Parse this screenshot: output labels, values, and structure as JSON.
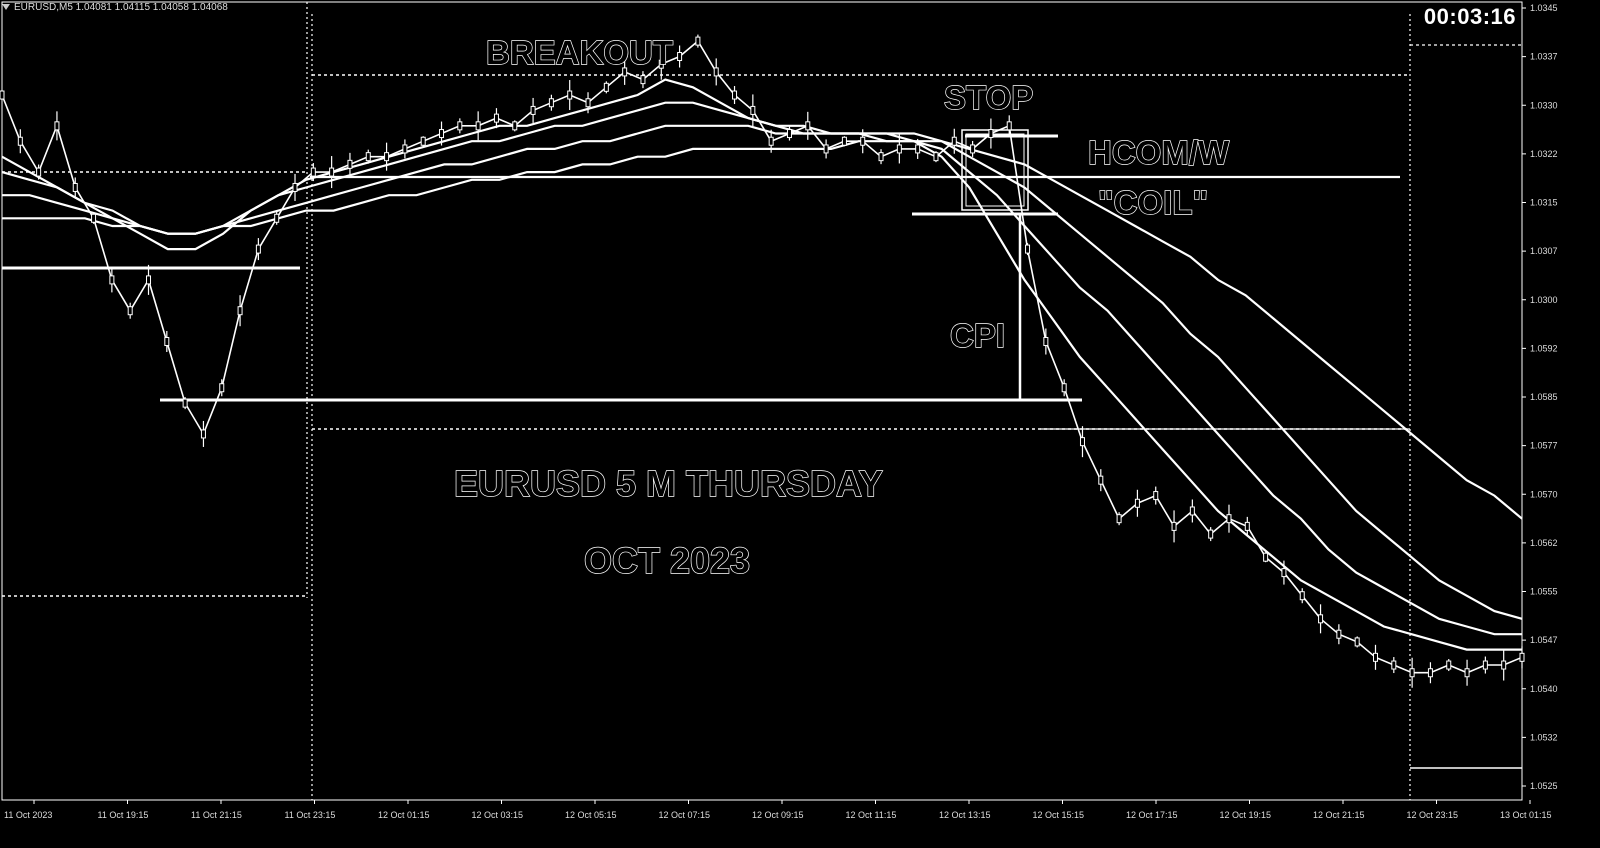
{
  "header": {
    "symbol_line": "EURUSD,M5  1.04081 1.04115 1.04058 1.04068"
  },
  "timer": {
    "value": "00:03:16"
  },
  "annotations": {
    "breakout": "BREAKOUT",
    "stop": "STOP",
    "hcom": "HCOM/W",
    "coil": "\"COIL\"",
    "cpi": "CPI",
    "title_line1": "EURUSD 5 M THURSDAY",
    "title_line2": "OCT 2023"
  },
  "colors": {
    "background": "#000000",
    "foreground": "#ffffff"
  },
  "chart_data": {
    "type": "line",
    "price_axis_labels": [
      "1.0345",
      "1.0337",
      "1.0330",
      "1.0322",
      "1.0315",
      "1.0307",
      "1.0300",
      "1.0592",
      "1.0585",
      "1.0577",
      "1.0570",
      "1.0562",
      "1.0555",
      "1.0547",
      "1.0540",
      "1.0532",
      "1.0525"
    ],
    "time_axis_labels": [
      "11 Oct 2023",
      "11 Oct 19:15",
      "11 Oct 21:15",
      "11 Oct 23:15",
      "12 Oct 01:15",
      "12 Oct 03:15",
      "12 Oct 05:15",
      "12 Oct 07:15",
      "12 Oct 09:15",
      "12 Oct 11:15",
      "12 Oct 13:15",
      "12 Oct 15:15",
      "12 Oct 17:15",
      "12 Oct 19:15",
      "12 Oct 21:15",
      "12 Oct 23:15",
      "13 Oct 01:15"
    ],
    "price": [
      0.9,
      0.84,
      0.8,
      0.86,
      0.78,
      0.74,
      0.66,
      0.62,
      0.66,
      0.58,
      0.5,
      0.46,
      0.52,
      0.62,
      0.7,
      0.74,
      0.78,
      0.8,
      0.8,
      0.81,
      0.82,
      0.82,
      0.83,
      0.84,
      0.85,
      0.86,
      0.86,
      0.87,
      0.86,
      0.88,
      0.89,
      0.9,
      0.89,
      0.91,
      0.93,
      0.92,
      0.94,
      0.95,
      0.97,
      0.93,
      0.9,
      0.88,
      0.84,
      0.85,
      0.86,
      0.83,
      0.84,
      0.84,
      0.82,
      0.83,
      0.83,
      0.82,
      0.84,
      0.83,
      0.85,
      0.86,
      0.7,
      0.58,
      0.52,
      0.45,
      0.4,
      0.35,
      0.37,
      0.38,
      0.34,
      0.36,
      0.33,
      0.35,
      0.34,
      0.3,
      0.28,
      0.25,
      0.22,
      0.2,
      0.19,
      0.17,
      0.16,
      0.15,
      0.15,
      0.16,
      0.15,
      0.16,
      0.16,
      0.17
    ],
    "moving_averages": [
      {
        "values": [
          0.82,
          0.8,
          0.78,
          0.76,
          0.74,
          0.72,
          0.7,
          0.7,
          0.72,
          0.75,
          0.77,
          0.79,
          0.8,
          0.81,
          0.82,
          0.83,
          0.84,
          0.85,
          0.86,
          0.86,
          0.87,
          0.88,
          0.89,
          0.9,
          0.92,
          0.91,
          0.89,
          0.87,
          0.86,
          0.85,
          0.85,
          0.85,
          0.84,
          0.84,
          0.82,
          0.78,
          0.72,
          0.66,
          0.61,
          0.56,
          0.52,
          0.48,
          0.44,
          0.4,
          0.36,
          0.33,
          0.3,
          0.27,
          0.25,
          0.23,
          0.21,
          0.2,
          0.19,
          0.18,
          0.18,
          0.18
        ]
      },
      {
        "values": [
          0.8,
          0.79,
          0.78,
          0.76,
          0.75,
          0.73,
          0.72,
          0.72,
          0.73,
          0.75,
          0.77,
          0.78,
          0.79,
          0.8,
          0.81,
          0.82,
          0.83,
          0.84,
          0.84,
          0.85,
          0.86,
          0.86,
          0.87,
          0.88,
          0.89,
          0.89,
          0.88,
          0.87,
          0.86,
          0.86,
          0.85,
          0.85,
          0.85,
          0.84,
          0.83,
          0.8,
          0.77,
          0.73,
          0.69,
          0.65,
          0.62,
          0.58,
          0.54,
          0.5,
          0.46,
          0.42,
          0.38,
          0.35,
          0.31,
          0.28,
          0.26,
          0.24,
          0.22,
          0.21,
          0.2,
          0.2
        ]
      },
      {
        "values": [
          0.77,
          0.77,
          0.76,
          0.75,
          0.74,
          0.73,
          0.72,
          0.72,
          0.73,
          0.74,
          0.75,
          0.76,
          0.77,
          0.78,
          0.79,
          0.8,
          0.81,
          0.81,
          0.82,
          0.83,
          0.83,
          0.84,
          0.84,
          0.85,
          0.86,
          0.86,
          0.86,
          0.86,
          0.85,
          0.85,
          0.85,
          0.85,
          0.85,
          0.85,
          0.84,
          0.82,
          0.8,
          0.78,
          0.75,
          0.72,
          0.69,
          0.66,
          0.63,
          0.59,
          0.56,
          0.52,
          0.48,
          0.44,
          0.4,
          0.36,
          0.33,
          0.3,
          0.27,
          0.25,
          0.23,
          0.22
        ]
      },
      {
        "values": [
          0.74,
          0.74,
          0.74,
          0.74,
          0.73,
          0.73,
          0.72,
          0.72,
          0.73,
          0.73,
          0.74,
          0.75,
          0.75,
          0.76,
          0.77,
          0.77,
          0.78,
          0.79,
          0.79,
          0.8,
          0.8,
          0.81,
          0.81,
          0.82,
          0.82,
          0.83,
          0.83,
          0.83,
          0.83,
          0.83,
          0.83,
          0.84,
          0.84,
          0.84,
          0.84,
          0.83,
          0.82,
          0.81,
          0.79,
          0.77,
          0.75,
          0.73,
          0.71,
          0.69,
          0.66,
          0.64,
          0.61,
          0.58,
          0.55,
          0.52,
          0.49,
          0.46,
          0.43,
          0.4,
          0.38,
          0.35
        ]
      }
    ]
  }
}
